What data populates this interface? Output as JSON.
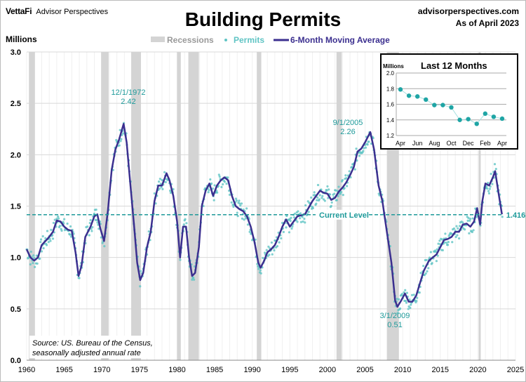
{
  "header": {
    "brand": "VettaFi",
    "brand_sub": "Advisor Perspectives",
    "title": "Building Permits",
    "site": "advisorperspectives.com",
    "as_of": "As of April 2023"
  },
  "colors": {
    "recession": "#d4d4d4",
    "permits": "#5fc4c4",
    "ma": "#3b2f8f",
    "annotation": "#1e9a9a",
    "current": "#1e9a9a"
  },
  "chart_data": {
    "type": "line",
    "title": "Building Permits",
    "ylabel": "Millions",
    "xlim": [
      1960,
      2025
    ],
    "ylim": [
      0,
      3.0
    ],
    "x_ticks": [
      1960,
      1965,
      1970,
      1975,
      1980,
      1985,
      1990,
      1995,
      2000,
      2005,
      2010,
      2015,
      2020,
      2025
    ],
    "y_ticks": [
      "0.0",
      "0.5",
      "1.0",
      "1.5",
      "2.0",
      "2.5",
      "3.0"
    ],
    "legend": {
      "placement": "top-center",
      "items": [
        "Recessions",
        "Permits",
        "6-Month Moving Average"
      ]
    },
    "recessions": [
      [
        1960.3,
        1961.1
      ],
      [
        1969.9,
        1970.9
      ],
      [
        1973.9,
        1975.2
      ],
      [
        1980.0,
        1980.5
      ],
      [
        1981.5,
        1982.9
      ],
      [
        1990.6,
        1991.2
      ],
      [
        2001.2,
        2001.9
      ],
      [
        2007.9,
        2009.5
      ],
      [
        2020.1,
        2020.3
      ]
    ],
    "moving_average": {
      "name": "6-Month Moving Average",
      "points": [
        [
          1960,
          1.08
        ],
        [
          1960.5,
          1.0
        ],
        [
          1961,
          0.97
        ],
        [
          1961.5,
          1.0
        ],
        [
          1962,
          1.12
        ],
        [
          1963,
          1.2
        ],
        [
          1963.5,
          1.25
        ],
        [
          1964,
          1.36
        ],
        [
          1964.5,
          1.35
        ],
        [
          1965,
          1.3
        ],
        [
          1965.5,
          1.27
        ],
        [
          1966,
          1.26
        ],
        [
          1966.5,
          1.05
        ],
        [
          1966.9,
          0.82
        ],
        [
          1967.3,
          0.92
        ],
        [
          1967.8,
          1.2
        ],
        [
          1968.5,
          1.3
        ],
        [
          1969,
          1.4
        ],
        [
          1969.4,
          1.42
        ],
        [
          1969.8,
          1.28
        ],
        [
          1970.3,
          1.16
        ],
        [
          1970.8,
          1.45
        ],
        [
          1971.3,
          1.85
        ],
        [
          1971.8,
          2.05
        ],
        [
          1972.3,
          2.15
        ],
        [
          1972.9,
          2.3
        ],
        [
          1973.3,
          2.12
        ],
        [
          1973.8,
          1.7
        ],
        [
          1974.3,
          1.3
        ],
        [
          1974.7,
          0.95
        ],
        [
          1975.1,
          0.78
        ],
        [
          1975.5,
          0.85
        ],
        [
          1976,
          1.1
        ],
        [
          1976.5,
          1.25
        ],
        [
          1977,
          1.55
        ],
        [
          1977.5,
          1.7
        ],
        [
          1978,
          1.7
        ],
        [
          1978.6,
          1.82
        ],
        [
          1979,
          1.75
        ],
        [
          1979.5,
          1.6
        ],
        [
          1980,
          1.35
        ],
        [
          1980.4,
          1.0
        ],
        [
          1980.8,
          1.3
        ],
        [
          1981.2,
          1.3
        ],
        [
          1981.6,
          1.0
        ],
        [
          1982,
          0.82
        ],
        [
          1982.4,
          0.85
        ],
        [
          1982.9,
          1.1
        ],
        [
          1983.3,
          1.5
        ],
        [
          1983.8,
          1.65
        ],
        [
          1984.3,
          1.72
        ],
        [
          1984.8,
          1.6
        ],
        [
          1985.3,
          1.7
        ],
        [
          1985.8,
          1.75
        ],
        [
          1986.3,
          1.78
        ],
        [
          1986.8,
          1.75
        ],
        [
          1987.3,
          1.6
        ],
        [
          1987.8,
          1.5
        ],
        [
          1988.3,
          1.47
        ],
        [
          1988.8,
          1.45
        ],
        [
          1989.3,
          1.4
        ],
        [
          1989.8,
          1.3
        ],
        [
          1990.3,
          1.15
        ],
        [
          1990.8,
          0.95
        ],
        [
          1991.1,
          0.9
        ],
        [
          1991.6,
          0.97
        ],
        [
          1992,
          1.05
        ],
        [
          1992.5,
          1.08
        ],
        [
          1993,
          1.12
        ],
        [
          1993.5,
          1.2
        ],
        [
          1994,
          1.3
        ],
        [
          1994.5,
          1.37
        ],
        [
          1995,
          1.3
        ],
        [
          1995.5,
          1.35
        ],
        [
          1996,
          1.4
        ],
        [
          1997,
          1.42
        ],
        [
          1998,
          1.55
        ],
        [
          1999,
          1.65
        ],
        [
          1999.5,
          1.63
        ],
        [
          2000,
          1.62
        ],
        [
          2000.5,
          1.56
        ],
        [
          2001,
          1.58
        ],
        [
          2001.5,
          1.64
        ],
        [
          2002,
          1.68
        ],
        [
          2002.5,
          1.73
        ],
        [
          2003,
          1.8
        ],
        [
          2003.5,
          1.88
        ],
        [
          2004,
          2.03
        ],
        [
          2004.5,
          2.06
        ],
        [
          2005,
          2.12
        ],
        [
          2005.7,
          2.22
        ],
        [
          2006.2,
          2.05
        ],
        [
          2006.8,
          1.7
        ],
        [
          2007.3,
          1.55
        ],
        [
          2007.9,
          1.25
        ],
        [
          2008.5,
          0.95
        ],
        [
          2009,
          0.58
        ],
        [
          2009.3,
          0.52
        ],
        [
          2009.8,
          0.58
        ],
        [
          2010.3,
          0.65
        ],
        [
          2010.8,
          0.57
        ],
        [
          2011.3,
          0.57
        ],
        [
          2011.8,
          0.63
        ],
        [
          2012.3,
          0.75
        ],
        [
          2012.8,
          0.87
        ],
        [
          2013.5,
          0.97
        ],
        [
          2014,
          1.0
        ],
        [
          2014.5,
          1.03
        ],
        [
          2015,
          1.1
        ],
        [
          2015.5,
          1.17
        ],
        [
          2016,
          1.18
        ],
        [
          2016.5,
          1.2
        ],
        [
          2017,
          1.25
        ],
        [
          2017.5,
          1.25
        ],
        [
          2018,
          1.32
        ],
        [
          2018.5,
          1.33
        ],
        [
          2019,
          1.3
        ],
        [
          2019.5,
          1.35
        ],
        [
          2019.9,
          1.48
        ],
        [
          2020.3,
          1.32
        ],
        [
          2020.6,
          1.55
        ],
        [
          2021,
          1.72
        ],
        [
          2021.5,
          1.7
        ],
        [
          2022,
          1.78
        ],
        [
          2022.3,
          1.84
        ],
        [
          2022.7,
          1.65
        ],
        [
          2023.2,
          1.42
        ]
      ]
    },
    "current_level": {
      "label": "Current Level",
      "value": 1.416,
      "value_label": "1.416"
    },
    "annotations": [
      {
        "date": "12/1/1972",
        "value_label": "2.42",
        "x": 1972.9,
        "y": 2.42
      },
      {
        "date": "9/1/2005",
        "value_label": "2.26",
        "x": 2005.7,
        "y": 2.26
      },
      {
        "date": "3/1/2009",
        "value_label": "0.51",
        "x": 2009.2,
        "y": 0.51
      }
    ],
    "source": [
      "Source: US. Bureau of the Census,",
      "seasonally adjusted annual rate"
    ],
    "inset": {
      "title": "Last 12 Months",
      "ylabel": "Millions",
      "ylim": [
        1.2,
        2.0
      ],
      "y_ticks": [
        "1.2",
        "1.4",
        "1.6",
        "1.8",
        "2.0"
      ],
      "x_ticks": [
        "Apr",
        "Jun",
        "Aug",
        "Oct",
        "Dec",
        "Feb",
        "Apr"
      ],
      "values": [
        1.79,
        1.71,
        1.7,
        1.66,
        1.59,
        1.59,
        1.56,
        1.4,
        1.41,
        1.35,
        1.48,
        1.44,
        1.416
      ]
    }
  }
}
